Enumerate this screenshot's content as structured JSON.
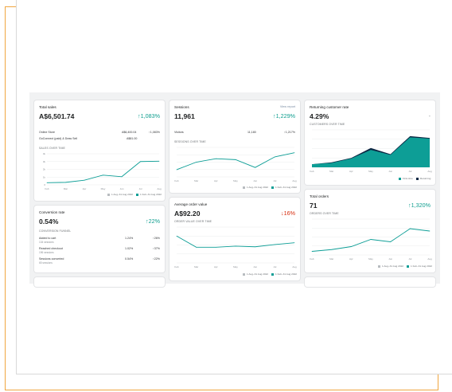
{
  "colors": {
    "accent": "#0d9e96",
    "prev": "#b8bcc0",
    "dark": "#0c2743",
    "positive": "#0f9e8f",
    "negative": "#d72c0d",
    "frame": "#f0a640"
  },
  "cards": {
    "total_sales": {
      "title": "Total sales",
      "value": "A$6,501.74",
      "change": "↑1,083%",
      "rows": [
        {
          "label": "Online Store",
          "amount": "A$6,400.04",
          "change": "↑1,083%"
        },
        {
          "label": "GoConnect (paid) & Draw Sell",
          "amount": "A$81.00",
          "change": ""
        }
      ],
      "chart_label": "SALES OVER TIME",
      "legend": [
        "1 Aug–31 Aug 2022",
        "1 Feb–31 Aug 2022"
      ]
    },
    "sessions": {
      "title": "Sessions",
      "link": "View report",
      "value": "11,961",
      "change": "↑1,229%",
      "rows": [
        {
          "label": "Visitors",
          "amount": "11,180",
          "change": "↑1,217%"
        }
      ],
      "chart_label": "SESSIONS OVER TIME",
      "legend": [
        "1 Aug–31 Aug 2022",
        "1 Feb–31 Aug 2022"
      ]
    },
    "returning": {
      "title": "Returning customer rate",
      "value": "4.29%",
      "change": "-",
      "chart_label": "CUSTOMERS OVER TIME",
      "legend": [
        "First-time",
        "Returning"
      ]
    },
    "conversion": {
      "title": "Conversion rate",
      "value": "0.54%",
      "change": "↑22%",
      "funnel_label": "CONVERSION FUNNEL",
      "rows": [
        {
          "label": "Added to cart",
          "detail": "134 sessions",
          "pct": "1.24%",
          "change": "↑26%"
        },
        {
          "label": "Reached checkout",
          "detail": "196 sessions",
          "pct": "1.02%",
          "change": "↑37%"
        },
        {
          "label": "Sessions converted",
          "detail": "65 sessions",
          "pct": "0.54%",
          "change": "↑22%"
        }
      ]
    },
    "aov": {
      "title": "Average order value",
      "value": "A$92.20",
      "change": "↓16%",
      "chart_label": "ORDER VALUE OVER TIME",
      "legend": [
        "1 Aug–31 Aug 2022",
        "1 Feb–31 Aug 2022"
      ]
    },
    "orders": {
      "title": "Total orders",
      "value": "71",
      "change": "↑1,320%",
      "chart_label": "ORDERS OVER TIME",
      "legend": [
        "1 Aug–31 Aug 2022",
        "1 Feb–31 Aug 2022"
      ]
    }
  },
  "chart_data": [
    {
      "type": "line",
      "title": "SALES OVER TIME",
      "categories": [
        "Feb",
        "Mar",
        "Apr",
        "May",
        "Jun",
        "Jul",
        "Aug"
      ],
      "yticks": [
        "0",
        "1k",
        "2k",
        "3k",
        "4k"
      ],
      "series": [
        {
          "name": "1 Feb–31 Aug 2022",
          "values": [
            280,
            320,
            600,
            1250,
            1050,
            3000,
            3050
          ]
        }
      ],
      "ylim": [
        0,
        4000
      ]
    },
    {
      "type": "line",
      "title": "SESSIONS OVER TIME",
      "categories": [
        "Feb",
        "Mar",
        "Apr",
        "May",
        "Jun",
        "Jul",
        "Aug"
      ],
      "series": [
        {
          "name": "1 Feb–31 Aug 2022",
          "values": [
            780,
            1600,
            1970,
            1870,
            1020,
            2170,
            2620
          ]
        }
      ],
      "ylim": [
        0,
        3200
      ]
    },
    {
      "type": "area",
      "title": "CUSTOMERS OVER TIME",
      "categories": [
        "Feb",
        "Mar",
        "Apr",
        "May",
        "Jun",
        "Jul",
        "Aug"
      ],
      "series": [
        {
          "name": "First-time",
          "values": [
            5,
            7,
            14,
            28,
            20,
            48,
            46
          ]
        },
        {
          "name": "Returning",
          "values": [
            0,
            1,
            1,
            3,
            1,
            2,
            1
          ]
        }
      ],
      "ylim": [
        0,
        60
      ]
    },
    {
      "type": "line",
      "title": "ORDER VALUE OVER TIME",
      "categories": [
        "Feb",
        "Mar",
        "Apr",
        "May",
        "Jun",
        "Jul",
        "Aug"
      ],
      "series": [
        {
          "name": "1 Feb–31 Aug 2022",
          "values": [
            120,
            70,
            70,
            75,
            72,
            82,
            90
          ]
        }
      ],
      "ylim": [
        0,
        160
      ]
    },
    {
      "type": "line",
      "title": "ORDERS OVER TIME",
      "categories": [
        "Feb",
        "Mar",
        "Apr",
        "May",
        "Jun",
        "Jul",
        "Aug"
      ],
      "series": [
        {
          "name": "1 Feb–31 Aug 2022",
          "values": [
            6,
            9,
            14,
            26,
            22,
            44,
            40
          ]
        }
      ],
      "ylim": [
        0,
        60
      ]
    }
  ]
}
